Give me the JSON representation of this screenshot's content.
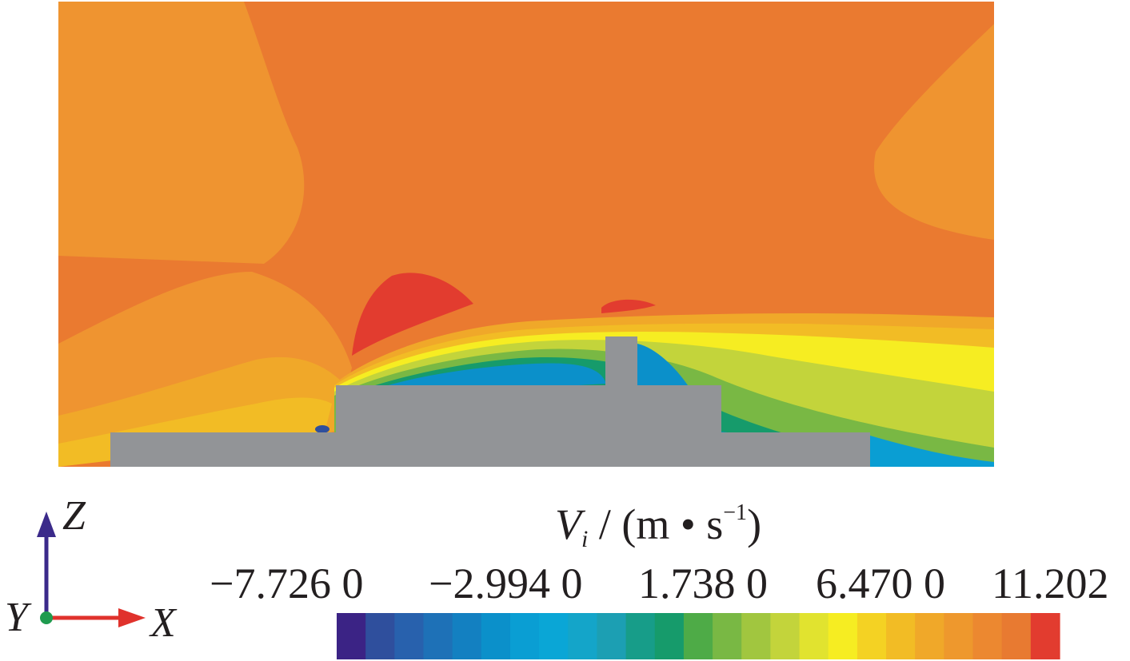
{
  "legend": {
    "quantity_symbol": "V",
    "quantity_subscript": "i",
    "quantity_units_prefix": "/ (m • s",
    "quantity_units_exponent": "−1",
    "quantity_units_suffix": ")",
    "tick_labels": [
      "−7.726 0",
      "−2.994 0",
      "1.738 0",
      "6.470 0",
      "11.202"
    ],
    "colors": [
      "#3b2385",
      "#2f4f9d",
      "#2861ad",
      "#1e71b7",
      "#1380c1",
      "#0b90ca",
      "#0a9ed3",
      "#0aa6d6",
      "#14a5c9",
      "#1c9fb3",
      "#179d89",
      "#169b6b",
      "#4eab47",
      "#79b844",
      "#a1c63f",
      "#c3d43b",
      "#e1e32f",
      "#f6ed22",
      "#f4d223",
      "#f2bc25",
      "#f0a829",
      "#ee982d",
      "#ec8830",
      "#e87a31",
      "#e23c2f"
    ]
  },
  "axes": {
    "vertical": "Z",
    "horizontal": "X",
    "origin": "Y"
  }
}
